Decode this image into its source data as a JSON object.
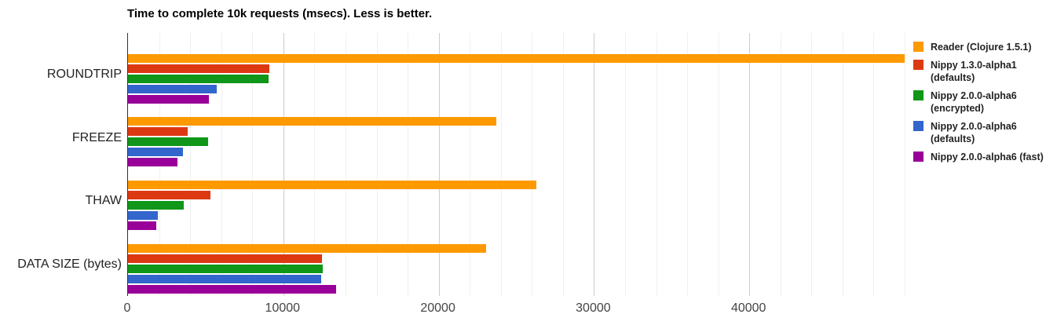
{
  "chart_data": {
    "type": "bar",
    "orientation": "horizontal",
    "title": "Time to complete 10k requests (msecs). Less is better.",
    "categories": [
      "ROUNDTRIP",
      "FREEZE",
      "THAW",
      "DATA SIZE (bytes)"
    ],
    "series": [
      {
        "name": "Reader (Clojure 1.5.1)",
        "color": "#FF9900",
        "values": [
          50000,
          23700,
          26300,
          23050
        ]
      },
      {
        "name": "Nippy 1.3.0-alpha1 (defaults)",
        "color": "#DC3912",
        "values": [
          9100,
          3840,
          5290,
          12490
        ]
      },
      {
        "name": "Nippy 2.0.0-alpha6 (encrypted)",
        "color": "#109618",
        "values": [
          9030,
          5150,
          3600,
          12520
        ]
      },
      {
        "name": "Nippy 2.0.0-alpha6 (defaults)",
        "color": "#3366CC",
        "values": [
          5710,
          3520,
          1920,
          12420
        ]
      },
      {
        "name": "Nippy 2.0.0-alpha6 (fast)",
        "color": "#990099",
        "values": [
          5200,
          3180,
          1840,
          13400
        ]
      }
    ],
    "xlabel": "",
    "ylabel": "",
    "xlim": [
      0,
      50000
    ],
    "x_ticks": [
      0,
      10000,
      20000,
      30000,
      40000
    ],
    "x_tick_labels": [
      "0",
      "10000",
      "20000",
      "30000",
      "40000"
    ],
    "minor_grid_step": 2000,
    "major_grid_step": 10000,
    "grid": true,
    "legend_position": "right",
    "colors": {
      "background": "#ffffff",
      "axis_line": "#333333",
      "grid_minor": "#f0f0f0",
      "grid_major": "#cccccc",
      "tick_text": "#444444",
      "category_text": "#222222",
      "title_text": "#000000"
    }
  },
  "legend": {
    "items": [
      {
        "lines": [
          "Reader (Clojure 1.5.1)"
        ],
        "color": "#FF9900"
      },
      {
        "lines": [
          "Nippy 1.3.0-alpha1",
          "(defaults)"
        ],
        "color": "#DC3912"
      },
      {
        "lines": [
          "Nippy 2.0.0-alpha6",
          "(encrypted)"
        ],
        "color": "#109618"
      },
      {
        "lines": [
          "Nippy 2.0.0-alpha6",
          "(defaults)"
        ],
        "color": "#3366CC"
      },
      {
        "lines": [
          "Nippy 2.0.0-alpha6 (fast)"
        ],
        "color": "#990099"
      }
    ]
  }
}
